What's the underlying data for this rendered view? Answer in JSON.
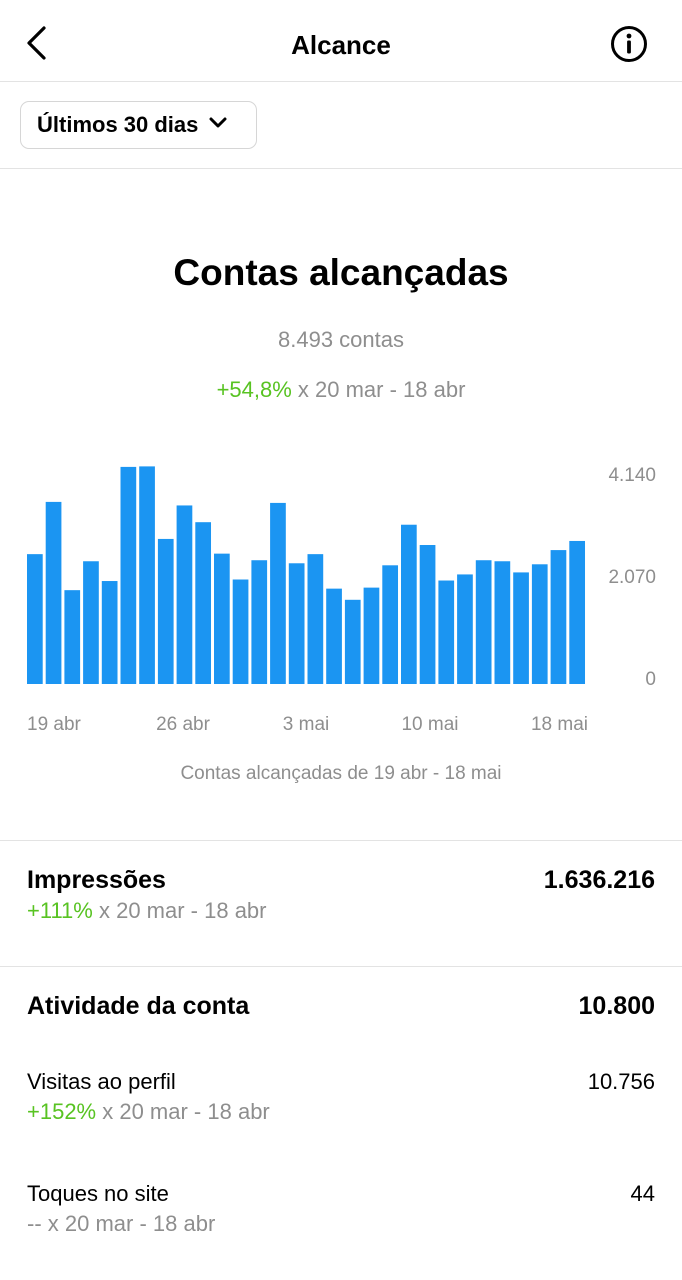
{
  "header": {
    "title": "Alcance",
    "back_icon": "chevron-left-icon",
    "info_icon": "info-circle-icon"
  },
  "filter": {
    "label": "Últimos 30 dias",
    "icon": "chevron-down-icon"
  },
  "summary": {
    "title": "Contas alcançadas",
    "subtitle": "8.493 contas",
    "change": "+54,8%",
    "change_suffix": " x 20 mar - 18 abr"
  },
  "chart_data": {
    "type": "bar",
    "color": "#1b95f2",
    "x_labels": [
      "19 abr",
      "26 abr",
      "3 mai",
      "10 mai",
      "18 mai"
    ],
    "y_ticks": [
      "4.140",
      "2.070",
      "0"
    ],
    "ylim": [
      0,
      4140
    ],
    "values": [
      2560,
      3590,
      1850,
      2420,
      2030,
      4280,
      4290,
      2860,
      3520,
      3190,
      2570,
      2060,
      2440,
      3570,
      2380,
      2560,
      1880,
      1660,
      1900,
      2340,
      3140,
      2740,
      2040,
      2160,
      2440,
      2420,
      2200,
      2360,
      2640,
      2820
    ],
    "caption": "Contas alcançadas de 19 abr - 18 mai"
  },
  "impressions": {
    "title": "Impressões",
    "value": "1.636.216",
    "change": "+111%",
    "change_suffix": " x 20 mar - 18 abr"
  },
  "activity": {
    "title": "Atividade da conta",
    "value": "10.800",
    "profile_visits": {
      "label": "Visitas ao perfil",
      "value": "10.756",
      "change": "+152%",
      "change_suffix": " x 20 mar - 18 abr"
    },
    "website_taps": {
      "label": "Toques no site",
      "value": "44",
      "change": "--",
      "change_suffix": " x 20 mar - 18 abr"
    }
  },
  "colors": {
    "accent_green": "#58c322",
    "bar_blue": "#1b95f2",
    "muted_text": "#8e8e8e"
  }
}
